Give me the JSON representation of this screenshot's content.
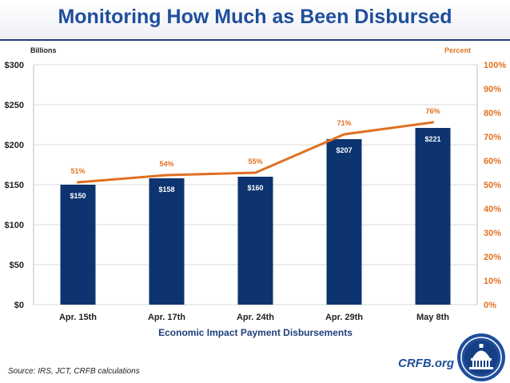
{
  "header": {
    "title": "Monitoring How Much as Been Disbursed"
  },
  "chart_data": {
    "type": "bar",
    "categories": [
      "Apr. 15th",
      "Apr. 17th",
      "Apr. 24th",
      "Apr. 29th",
      "May 8th"
    ],
    "xlabel": "Economic Impact Payment Disbursements",
    "ylabel": "Billions",
    "y2label": "Percent",
    "ylim": [
      0,
      300
    ],
    "y2lim": [
      0,
      100
    ],
    "yticks": [
      "$0",
      "$50",
      "$100",
      "$150",
      "$200",
      "$250",
      "$300"
    ],
    "y2ticks": [
      "0%",
      "10%",
      "20%",
      "30%",
      "40%",
      "50%",
      "60%",
      "70%",
      "80%",
      "90%",
      "100%"
    ],
    "grid": true,
    "series": [
      {
        "type": "bar",
        "axis": "left",
        "values": [
          150,
          158,
          160,
          207,
          221
        ],
        "labels": [
          "$150",
          "$158",
          "$160",
          "$207",
          "$221"
        ],
        "color": "#0d3470"
      },
      {
        "type": "line",
        "axis": "right",
        "values": [
          51,
          54,
          55,
          71,
          76
        ],
        "labels": [
          "51%",
          "54%",
          "55%",
          "71%",
          "76%"
        ],
        "color": "#e07020"
      }
    ],
    "colors": {
      "left_axis_text": "#222222",
      "right_axis_text": "#e07020",
      "grid": "#d9d9d9"
    }
  },
  "footer": {
    "source": "Source: IRS, JCT, CRFB calculations",
    "brand": "CRFB.org"
  },
  "icons": {
    "seal": "capitol-dome-seal-icon"
  }
}
